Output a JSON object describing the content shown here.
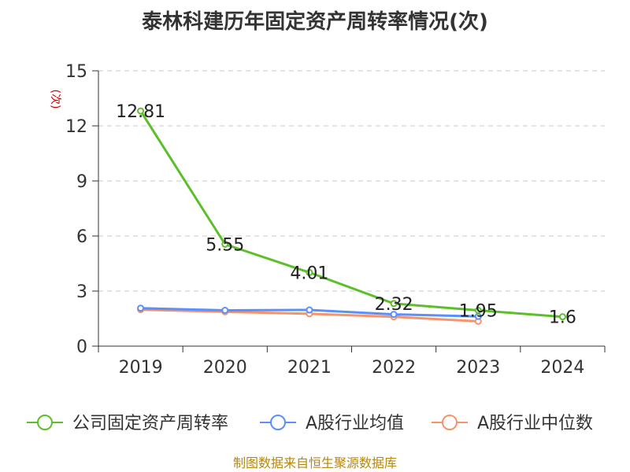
{
  "chart_data": {
    "type": "line",
    "title": "泰林科建历年固定资产周转率情况(次)",
    "xlabel": "",
    "ylabel": "(次)",
    "ylim": [
      0,
      15
    ],
    "yticks": [
      0,
      3,
      6,
      9,
      12,
      15
    ],
    "categories": [
      "2019",
      "2020",
      "2021",
      "2022",
      "2023",
      "2024"
    ],
    "grid": true,
    "legend_position": "bottom",
    "series": [
      {
        "name": "公司固定资产周转率",
        "color": "#5cbf2a",
        "values": [
          12.81,
          5.55,
          4.01,
          2.32,
          1.95,
          1.6
        ],
        "labels": [
          "12.81",
          "5.55",
          "4.01",
          "2.32",
          "1.95",
          "1.6"
        ]
      },
      {
        "name": "A股行业均值",
        "color": "#5b8ff9",
        "values": [
          2.07,
          1.95,
          1.97,
          1.73,
          1.62,
          null
        ]
      },
      {
        "name": "A股行业中位数",
        "color": "#f5946b",
        "values": [
          1.99,
          1.87,
          1.76,
          1.6,
          1.35,
          null
        ]
      }
    ]
  },
  "source_text": "制图数据来自恒生聚源数据库"
}
